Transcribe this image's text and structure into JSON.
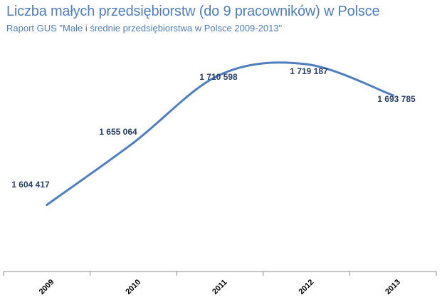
{
  "chart_data": {
    "type": "line",
    "title": "Liczba małych przedsiębiorstw (do 9 pracowników) w Polsce",
    "subtitle": "Raport GUS \"Małe i średnie przedsiębiorstwa w Polsce 2009-2013\"",
    "xlabel": "",
    "ylabel": "",
    "categories": [
      "2009",
      "2010",
      "2011",
      "2012",
      "2013"
    ],
    "series": [
      {
        "values": [
          1604417,
          1655064,
          1710598,
          1719187,
          1693785
        ],
        "data_labels": [
          "1 604 417",
          "1 655 064",
          "1 710 598",
          "1 719 187",
          "1 693 785"
        ],
        "color": "#4f7fbf"
      }
    ],
    "ylim": [
      1550000,
      1760000
    ],
    "grid": false,
    "legend": "none",
    "smooth": true
  }
}
